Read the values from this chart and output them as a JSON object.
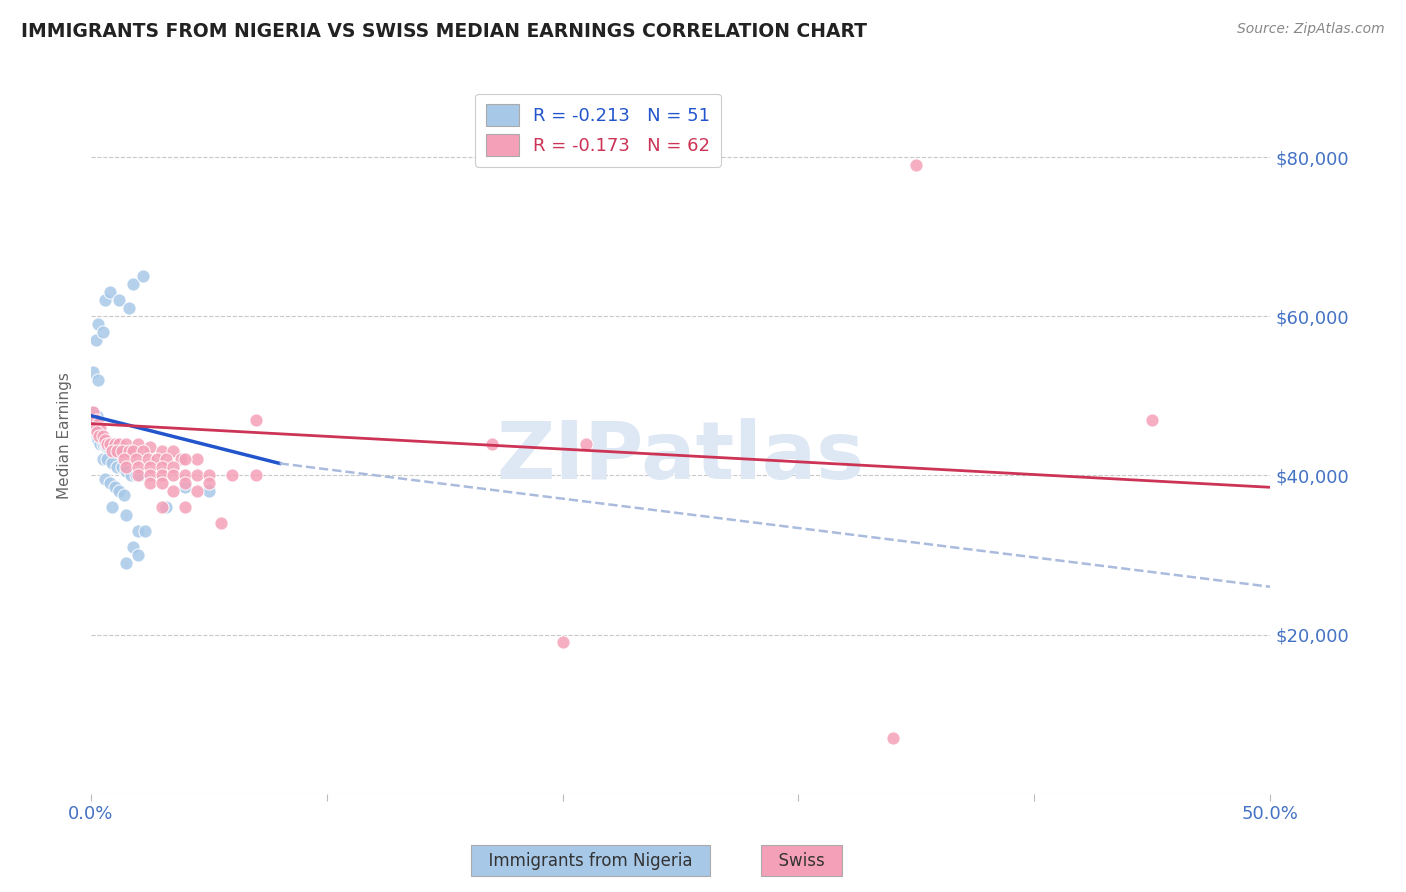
{
  "title": "IMMIGRANTS FROM NIGERIA VS SWISS MEDIAN EARNINGS CORRELATION CHART",
  "source": "Source: ZipAtlas.com",
  "ylabel": "Median Earnings",
  "watermark": "ZIPatlas",
  "blue_scatter": [
    [
      0.3,
      59000
    ],
    [
      0.6,
      62000
    ],
    [
      0.8,
      63000
    ],
    [
      1.2,
      62000
    ],
    [
      1.8,
      64000
    ],
    [
      2.2,
      65000
    ],
    [
      1.6,
      61000
    ],
    [
      0.2,
      57000
    ],
    [
      0.5,
      58000
    ],
    [
      0.1,
      53000
    ],
    [
      0.3,
      52000
    ],
    [
      0.1,
      48000
    ],
    [
      0.2,
      47000
    ],
    [
      0.25,
      47500
    ],
    [
      0.3,
      46500
    ],
    [
      0.1,
      46000
    ],
    [
      0.15,
      45500
    ],
    [
      0.2,
      45000
    ],
    [
      0.25,
      45000
    ],
    [
      0.3,
      44500
    ],
    [
      0.4,
      44000
    ],
    [
      0.5,
      44000
    ],
    [
      0.6,
      44000
    ],
    [
      0.7,
      43500
    ],
    [
      0.8,
      43000
    ],
    [
      1.0,
      43000
    ],
    [
      1.2,
      43000
    ],
    [
      0.5,
      42000
    ],
    [
      0.7,
      42000
    ],
    [
      0.9,
      41500
    ],
    [
      1.1,
      41000
    ],
    [
      1.3,
      41000
    ],
    [
      1.5,
      40500
    ],
    [
      1.7,
      40000
    ],
    [
      1.9,
      40000
    ],
    [
      2.1,
      40000
    ],
    [
      0.6,
      39500
    ],
    [
      0.8,
      39000
    ],
    [
      1.0,
      38500
    ],
    [
      1.2,
      38000
    ],
    [
      1.4,
      37500
    ],
    [
      0.9,
      36000
    ],
    [
      1.5,
      35000
    ],
    [
      2.0,
      33000
    ],
    [
      2.3,
      33000
    ],
    [
      1.8,
      31000
    ],
    [
      2.0,
      30000
    ],
    [
      3.2,
      36000
    ],
    [
      4.0,
      38500
    ],
    [
      5.0,
      38000
    ],
    [
      1.5,
      29000
    ]
  ],
  "pink_scatter": [
    [
      0.1,
      48000
    ],
    [
      0.2,
      47000
    ],
    [
      0.3,
      46500
    ],
    [
      0.4,
      46000
    ],
    [
      0.15,
      46000
    ],
    [
      0.25,
      45500
    ],
    [
      0.35,
      45000
    ],
    [
      0.5,
      45000
    ],
    [
      0.6,
      44500
    ],
    [
      0.7,
      44000
    ],
    [
      0.8,
      44000
    ],
    [
      1.0,
      44000
    ],
    [
      1.2,
      44000
    ],
    [
      1.5,
      44000
    ],
    [
      2.0,
      44000
    ],
    [
      2.5,
      43500
    ],
    [
      0.9,
      43000
    ],
    [
      1.1,
      43000
    ],
    [
      1.3,
      43000
    ],
    [
      1.6,
      43000
    ],
    [
      1.8,
      43000
    ],
    [
      2.2,
      43000
    ],
    [
      3.0,
      43000
    ],
    [
      3.5,
      43000
    ],
    [
      1.4,
      42000
    ],
    [
      1.9,
      42000
    ],
    [
      2.4,
      42000
    ],
    [
      2.8,
      42000
    ],
    [
      3.2,
      42000
    ],
    [
      3.8,
      42000
    ],
    [
      4.5,
      42000
    ],
    [
      4.0,
      42000
    ],
    [
      1.5,
      41000
    ],
    [
      2.0,
      41000
    ],
    [
      2.5,
      41000
    ],
    [
      3.0,
      41000
    ],
    [
      3.5,
      41000
    ],
    [
      2.0,
      40000
    ],
    [
      2.5,
      40000
    ],
    [
      3.0,
      40000
    ],
    [
      3.5,
      40000
    ],
    [
      4.0,
      40000
    ],
    [
      4.5,
      40000
    ],
    [
      5.0,
      40000
    ],
    [
      6.0,
      40000
    ],
    [
      2.5,
      39000
    ],
    [
      3.0,
      39000
    ],
    [
      4.0,
      39000
    ],
    [
      5.0,
      39000
    ],
    [
      3.5,
      38000
    ],
    [
      4.5,
      38000
    ],
    [
      7.0,
      47000
    ],
    [
      7.0,
      40000
    ],
    [
      3.0,
      36000
    ],
    [
      4.0,
      36000
    ],
    [
      5.5,
      34000
    ],
    [
      17.0,
      44000
    ],
    [
      21.0,
      44000
    ],
    [
      20.0,
      19000
    ],
    [
      34.0,
      7000
    ],
    [
      35.0,
      79000
    ],
    [
      45.0,
      47000
    ]
  ],
  "blue_line": {
    "x0": 0.0,
    "y0": 47500,
    "x1": 8.0,
    "y1": 41500
  },
  "blue_dash_line": {
    "x0": 8.0,
    "y0": 41500,
    "x1": 50.0,
    "y1": 26000
  },
  "pink_line": {
    "x0": 0.0,
    "y0": 46500,
    "x1": 50.0,
    "y1": 38500
  },
  "xlim": [
    0,
    50
  ],
  "ylim": [
    0,
    90000
  ],
  "yticks": [
    0,
    20000,
    40000,
    60000,
    80000
  ],
  "xticks": [
    0,
    10,
    20,
    30,
    40,
    50
  ],
  "xtick_labels": [
    "0.0%",
    "",
    "",
    "",
    "",
    "50.0%"
  ],
  "background_color": "#ffffff",
  "grid_color": "#c8c8c8",
  "blue_color": "#a8c8e8",
  "pink_color": "#f4a0b8",
  "blue_line_color": "#2255cc",
  "pink_line_color": "#cc3355",
  "blue_dash_color": "#aabbdd",
  "title_color": "#222222",
  "source_color": "#888888",
  "axis_label_color": "#4472c4",
  "watermark_color": "#dde8f4",
  "ylabel_color": "#666666"
}
